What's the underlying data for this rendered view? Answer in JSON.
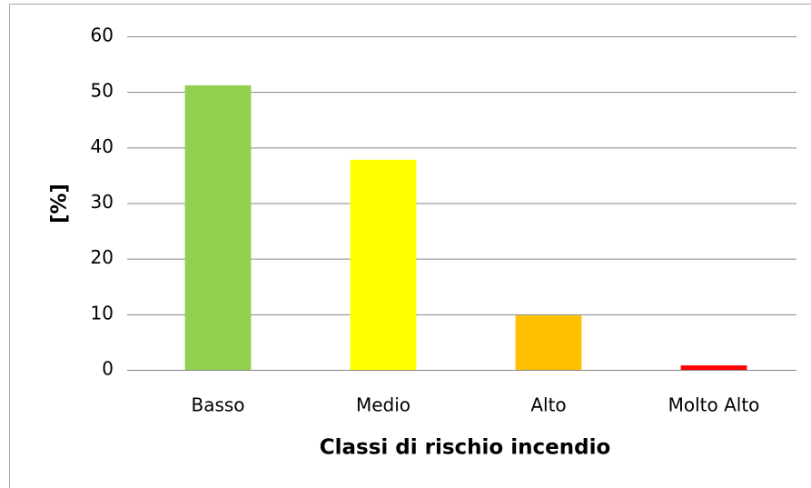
{
  "chart_data": {
    "type": "bar",
    "x_label": "Classi di rischio incendio",
    "y_label": "[%]",
    "categories": [
      "Basso",
      "Medio",
      "Alto",
      "Molto Alto"
    ],
    "values": [
      51.2,
      37.8,
      9.8,
      0.8
    ],
    "colors": [
      "#92d050",
      "#ffff00",
      "#ffc000",
      "#ff0000"
    ],
    "ylim": [
      0,
      60
    ],
    "yticks": [
      0,
      10,
      20,
      30,
      40,
      50,
      60
    ],
    "grid": true
  }
}
